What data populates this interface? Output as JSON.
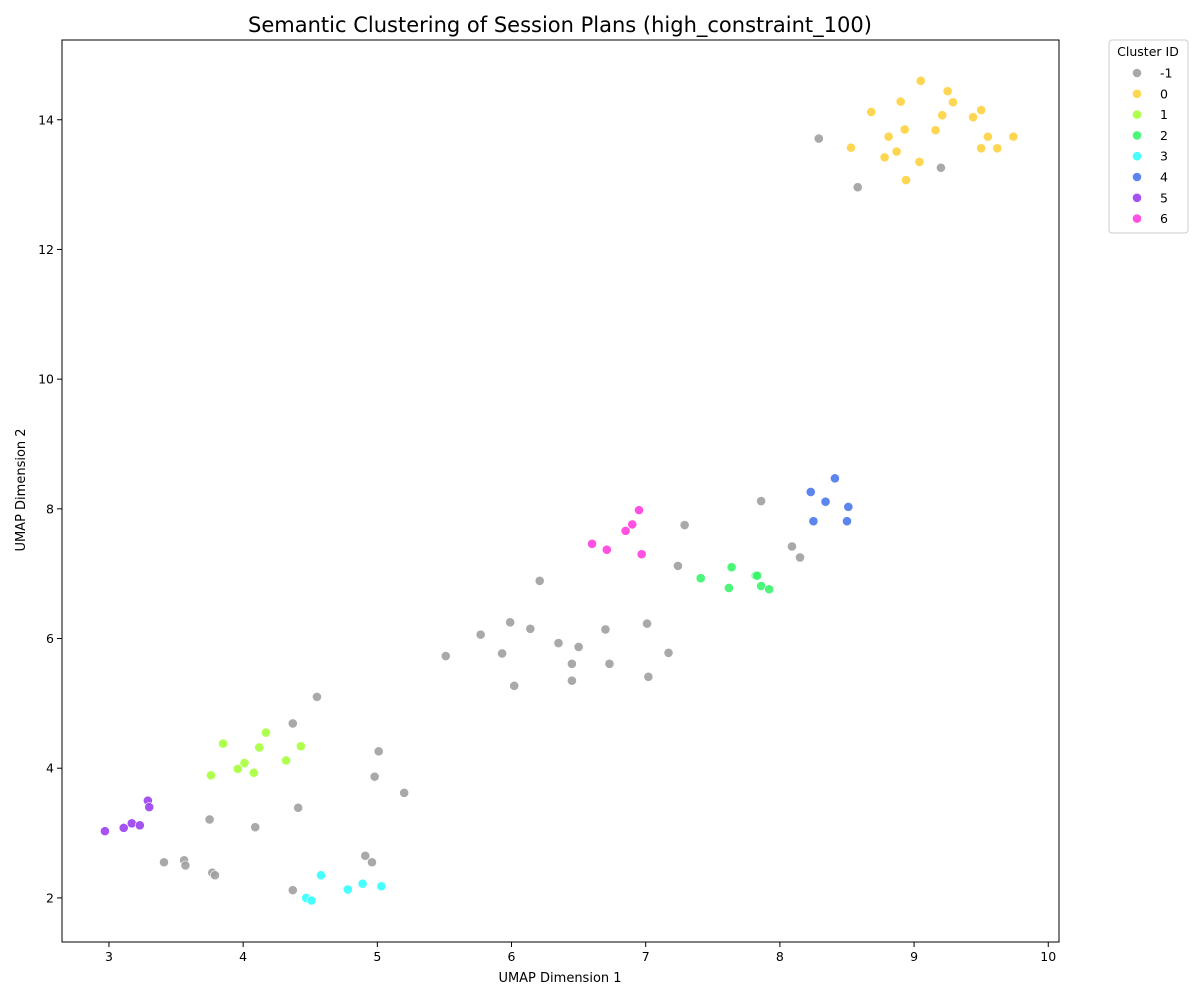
{
  "chart_data": {
    "type": "scatter",
    "title": "Semantic Clustering of Session Plans (high_constraint_100)",
    "xlabel": "UMAP Dimension 1",
    "ylabel": "UMAP Dimension 2",
    "xlim": [
      2.65,
      10.08
    ],
    "ylim": [
      1.32,
      15.23
    ],
    "xticks": [
      3,
      4,
      5,
      6,
      7,
      8,
      9,
      10
    ],
    "yticks": [
      2,
      4,
      6,
      8,
      10,
      12,
      14
    ],
    "grid": false,
    "legend": {
      "title": "Cluster ID",
      "placement": "outside-top-right"
    },
    "series": [
      {
        "name": "-1",
        "color": "#a0a0a0",
        "points": [
          [
            8.29,
            13.71
          ],
          [
            8.58,
            12.96
          ],
          [
            9.2,
            13.26
          ],
          [
            7.86,
            8.12
          ],
          [
            7.29,
            7.75
          ],
          [
            8.09,
            7.42
          ],
          [
            8.15,
            7.25
          ],
          [
            7.24,
            7.12
          ],
          [
            6.21,
            6.89
          ],
          [
            5.99,
            6.25
          ],
          [
            5.77,
            6.06
          ],
          [
            6.14,
            6.15
          ],
          [
            6.7,
            6.14
          ],
          [
            7.01,
            6.23
          ],
          [
            6.35,
            5.93
          ],
          [
            6.5,
            5.87
          ],
          [
            5.93,
            5.77
          ],
          [
            7.17,
            5.78
          ],
          [
            5.51,
            5.73
          ],
          [
            6.45,
            5.61
          ],
          [
            6.73,
            5.61
          ],
          [
            7.02,
            5.41
          ],
          [
            6.45,
            5.35
          ],
          [
            6.02,
            5.27
          ],
          [
            4.55,
            5.1
          ],
          [
            4.37,
            4.69
          ],
          [
            5.01,
            4.26
          ],
          [
            4.98,
            3.87
          ],
          [
            5.2,
            3.62
          ],
          [
            4.41,
            3.39
          ],
          [
            3.75,
            3.21
          ],
          [
            4.09,
            3.09
          ],
          [
            4.91,
            2.65
          ],
          [
            4.96,
            2.55
          ],
          [
            3.41,
            2.55
          ],
          [
            3.56,
            2.58
          ],
          [
            3.57,
            2.5
          ],
          [
            3.77,
            2.39
          ],
          [
            3.79,
            2.35
          ],
          [
            4.37,
            2.12
          ]
        ]
      },
      {
        "name": "0",
        "color": "#ffd23f",
        "points": [
          [
            9.05,
            14.6
          ],
          [
            9.25,
            14.44
          ],
          [
            8.9,
            14.28
          ],
          [
            9.29,
            14.27
          ],
          [
            8.68,
            14.12
          ],
          [
            9.5,
            14.15
          ],
          [
            9.21,
            14.07
          ],
          [
            9.44,
            14.04
          ],
          [
            8.93,
            13.85
          ],
          [
            9.16,
            13.84
          ],
          [
            8.81,
            13.74
          ],
          [
            9.55,
            13.74
          ],
          [
            9.74,
            13.74
          ],
          [
            8.53,
            13.57
          ],
          [
            8.87,
            13.51
          ],
          [
            9.5,
            13.56
          ],
          [
            9.62,
            13.56
          ],
          [
            8.78,
            13.42
          ],
          [
            9.04,
            13.35
          ],
          [
            8.94,
            13.07
          ]
        ]
      },
      {
        "name": "1",
        "color": "#a6ff3b",
        "points": [
          [
            4.17,
            4.55
          ],
          [
            3.85,
            4.38
          ],
          [
            4.43,
            4.34
          ],
          [
            4.12,
            4.32
          ],
          [
            4.32,
            4.12
          ],
          [
            4.01,
            4.08
          ],
          [
            3.96,
            3.99
          ],
          [
            4.08,
            3.93
          ],
          [
            3.76,
            3.89
          ]
        ]
      },
      {
        "name": "2",
        "color": "#37f56a",
        "points": [
          [
            7.64,
            7.1
          ],
          [
            7.82,
            6.97
          ],
          [
            7.83,
            6.97
          ],
          [
            7.41,
            6.93
          ],
          [
            7.86,
            6.81
          ],
          [
            7.62,
            6.78
          ],
          [
            7.92,
            6.76
          ]
        ]
      },
      {
        "name": "3",
        "color": "#33ffff",
        "points": [
          [
            4.58,
            2.35
          ],
          [
            4.89,
            2.22
          ],
          [
            5.03,
            2.18
          ],
          [
            4.78,
            2.13
          ],
          [
            4.47,
            2.0
          ],
          [
            4.51,
            1.96
          ]
        ]
      },
      {
        "name": "4",
        "color": "#4a78ec",
        "points": [
          [
            8.41,
            8.47
          ],
          [
            8.23,
            8.26
          ],
          [
            8.34,
            8.11
          ],
          [
            8.51,
            8.03
          ],
          [
            8.25,
            7.81
          ],
          [
            8.5,
            7.81
          ]
        ]
      },
      {
        "name": "5",
        "color": "#9b3ff2",
        "points": [
          [
            3.29,
            3.5
          ],
          [
            3.3,
            3.4
          ],
          [
            3.17,
            3.15
          ],
          [
            3.23,
            3.12
          ],
          [
            3.11,
            3.08
          ],
          [
            2.97,
            3.03
          ]
        ]
      },
      {
        "name": "6",
        "color": "#ff3fe0",
        "points": [
          [
            6.95,
            7.98
          ],
          [
            6.9,
            7.76
          ],
          [
            6.85,
            7.66
          ],
          [
            6.6,
            7.46
          ],
          [
            6.71,
            7.37
          ],
          [
            6.97,
            7.3
          ]
        ]
      }
    ]
  }
}
